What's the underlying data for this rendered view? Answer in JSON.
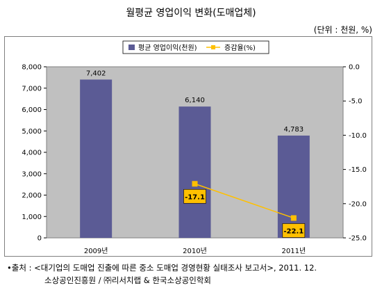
{
  "chart_data": {
    "type": "bar",
    "title": "월평균 영업이익 변화(도매업체)",
    "unit_label": "(단위 : 천원, %)",
    "categories": [
      "2009년",
      "2010년",
      "2011년"
    ],
    "series": [
      {
        "name": "평균 영업이익(천원)",
        "type": "bar",
        "axis": "left",
        "values": [
          7402,
          6140,
          4783
        ],
        "value_labels": [
          "7,402",
          "6,140",
          "4,783"
        ],
        "color": "#5b5b95"
      },
      {
        "name": "증감율(%)",
        "type": "line",
        "axis": "right",
        "values": [
          null,
          -17.1,
          -22.1
        ],
        "value_labels": [
          "",
          "-17.1",
          "-22.1"
        ],
        "color": "#ffc000"
      }
    ],
    "y_left": {
      "min": 0,
      "max": 8000,
      "ticks": [
        "0",
        "1,000",
        "2,000",
        "3,000",
        "4,000",
        "5,000",
        "6,000",
        "7,000",
        "8,000"
      ]
    },
    "y_right": {
      "min": -25,
      "max": 0,
      "ticks": [
        "-25.0",
        "-20.0",
        "-15.0",
        "-10.0",
        "-5.0",
        "0.0"
      ]
    },
    "grid": false,
    "legend": "top",
    "plot_background": "#c0c0c0"
  },
  "source": {
    "line1": "•출처 : <대기업의 도매업 진출에 따른 중소 도매업 경영현황 실태조사 보고서>, 2011. 12.",
    "line2": "소상공인진흥원 / ㈜리서치랩 & 한국소상공인학회"
  }
}
